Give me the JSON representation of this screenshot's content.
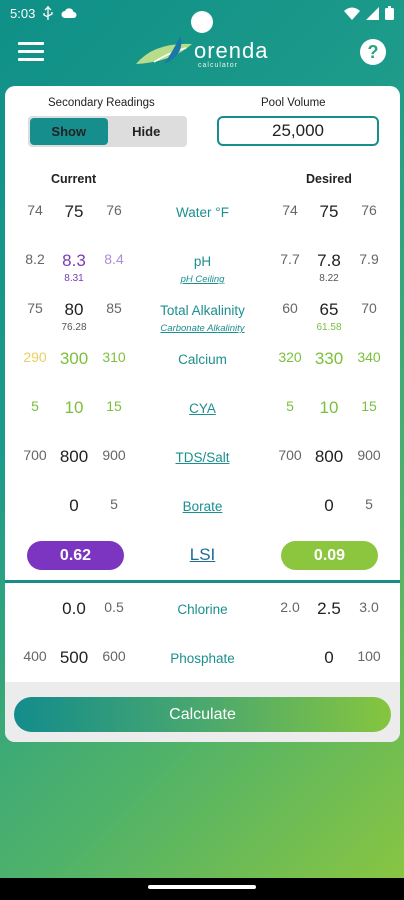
{
  "status": {
    "time": "5:03"
  },
  "app": {
    "logo_text": "orenda",
    "logo_sub": "calculator"
  },
  "secondary": {
    "label": "Secondary Readings",
    "show": "Show",
    "hide": "Hide"
  },
  "volume": {
    "label": "Pool Volume",
    "value": "25,000"
  },
  "columns": {
    "current": "Current",
    "desired": "Desired"
  },
  "rows": {
    "water": {
      "label": "Water °F",
      "cur": [
        "74",
        "75",
        "76"
      ],
      "des": [
        "74",
        "75",
        "76"
      ]
    },
    "ph": {
      "label": "pH",
      "sub_label": "pH Ceiling",
      "cur": [
        "8.2",
        "8.3",
        "8.4"
      ],
      "cur_sub": "8.31",
      "des": [
        "7.7",
        "7.8",
        "7.9"
      ],
      "des_sub": "8.22"
    },
    "ta": {
      "label": "Total Alkalinity",
      "sub_label": "Carbonate Alkalinity",
      "cur": [
        "75",
        "80",
        "85"
      ],
      "cur_sub": "76.28",
      "des": [
        "60",
        "65",
        "70"
      ],
      "des_sub": "61.58"
    },
    "calcium": {
      "label": "Calcium",
      "cur": [
        "290",
        "300",
        "310"
      ],
      "des": [
        "320",
        "330",
        "340"
      ]
    },
    "cya": {
      "label": "CYA",
      "cur": [
        "5",
        "10",
        "15"
      ],
      "des": [
        "5",
        "10",
        "15"
      ]
    },
    "tds": {
      "label": "TDS/Salt",
      "cur": [
        "700",
        "800",
        "900"
      ],
      "des": [
        "700",
        "800",
        "900"
      ]
    },
    "borate": {
      "label": "Borate",
      "cur": [
        "",
        "0",
        "5"
      ],
      "des": [
        "",
        "0",
        "5"
      ]
    },
    "chlorine": {
      "label": "Chlorine",
      "cur": [
        "",
        "0.0",
        "0.5"
      ],
      "des": [
        "2.0",
        "2.5",
        "3.0"
      ]
    },
    "phosphate": {
      "label": "Phosphate",
      "cur": [
        "400",
        "500",
        "600"
      ],
      "des": [
        "",
        "0",
        "100"
      ]
    }
  },
  "lsi": {
    "label": "LSI",
    "current": "0.62",
    "desired": "0.09",
    "current_color": "#7b35c0",
    "desired_color": "#8cc63f"
  },
  "calculate": "Calculate"
}
